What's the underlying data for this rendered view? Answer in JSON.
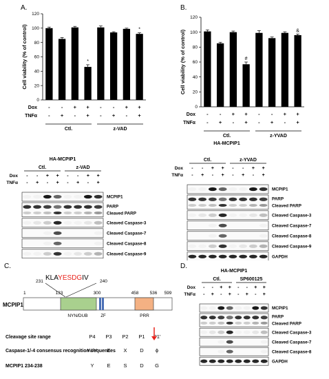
{
  "panel_labels": {
    "a": "A.",
    "b": "B.",
    "c": "C.",
    "d": "D."
  },
  "chart_data": [
    {
      "type": "bar",
      "panel": "A",
      "ylabel": "Cell viability (% of control)",
      "ylim": [
        0,
        120
      ],
      "yticks": [
        0,
        20,
        40,
        60,
        80,
        100,
        120
      ],
      "categories": [
        "1",
        "2",
        "3",
        "4",
        "5",
        "6",
        "7",
        "8"
      ],
      "values": [
        100,
        85,
        101,
        46,
        101,
        94,
        99,
        92
      ],
      "errors": [
        1.5,
        2,
        1.5,
        3,
        2,
        1,
        1,
        1.5
      ],
      "annotations": [
        "",
        "",
        "",
        "*",
        "",
        "",
        "",
        "*"
      ],
      "rows": [
        {
          "label": "Dox",
          "marks": [
            "-",
            "-",
            "+",
            "+",
            "-",
            "-",
            "+",
            "+"
          ]
        },
        {
          "label": "TNFα",
          "marks": [
            "-",
            "+",
            "-",
            "+",
            "-",
            "+",
            "-",
            "+"
          ]
        }
      ],
      "groups": [
        "Ctl.",
        "z-VAD"
      ]
    },
    {
      "type": "bar",
      "panel": "B",
      "ylabel": "Cell viability (% of control)",
      "ylim": [
        0,
        120
      ],
      "yticks": [
        0,
        20,
        40,
        60,
        80,
        100,
        120
      ],
      "categories": [
        "1",
        "2",
        "3",
        "4",
        "5",
        "6",
        "7",
        "8"
      ],
      "values": [
        101,
        85,
        100,
        57,
        99,
        92,
        99,
        96
      ],
      "errors": [
        2,
        1.5,
        1.5,
        3,
        3,
        1.5,
        1.5,
        1.5
      ],
      "annotations": [
        "",
        "",
        "",
        "#",
        "",
        "",
        "",
        "&"
      ],
      "rows": [
        {
          "label": "Dox",
          "marks": [
            "-",
            "-",
            "+",
            "+",
            "-",
            "-",
            "+",
            "+"
          ]
        },
        {
          "label": "TNFα",
          "marks": [
            "-",
            "+",
            "-",
            "+",
            "-",
            "+",
            "-",
            "+"
          ]
        }
      ],
      "groups": [
        "Ctl.",
        "z-YVAD"
      ],
      "construct": "HA-MCPIP1"
    }
  ],
  "blot_a": {
    "title": "HA-MCPIP1",
    "groups": [
      "Ctl.",
      "z-VAD"
    ],
    "rows": [
      {
        "label": "Dox",
        "marks": [
          "-",
          "-",
          "+",
          "+",
          "-",
          "-",
          "+",
          "+"
        ]
      },
      {
        "label": "TNFα",
        "marks": [
          "-",
          "+",
          "-",
          "+",
          "-",
          "+",
          "-",
          "+"
        ]
      }
    ],
    "bands": [
      "MCPIP1",
      "PARP",
      "Cleaved PARP",
      "Cleaved Caspase-3",
      "Cleaved Caspase-7",
      "Cleaved Caspase-8",
      "Cleaved Caspase-9",
      "GAPDH"
    ]
  },
  "blot_b": {
    "groups": [
      "Ctl.",
      "z-YVAD"
    ],
    "rows": [
      {
        "label": "Dox",
        "marks": [
          "-",
          "-",
          "+",
          "+",
          "-",
          "-",
          "+",
          "+"
        ]
      },
      {
        "label": "TNFα",
        "marks": [
          "-",
          "+",
          "-",
          "+",
          "-",
          "+",
          "-",
          "+"
        ]
      }
    ],
    "bands": [
      "MCPIP1",
      "PARP",
      "Cleaved PARP",
      "Cleaved Caspase-3",
      "Cleaved Caspase-7",
      "Cleaved Caspase-8",
      "Cleaved Caspase-9",
      "GAPDH"
    ]
  },
  "blot_d": {
    "title": "HA-MCPIP1",
    "groups": [
      "Ctl.",
      "SP600125"
    ],
    "rows": [
      {
        "label": "Dox",
        "marks": [
          "-",
          "-",
          "+",
          "+",
          "-",
          "-",
          "+",
          "+"
        ]
      },
      {
        "label": "TNFα",
        "marks": [
          "-",
          "+",
          "-",
          "+",
          "-",
          "+",
          "-",
          "+"
        ]
      }
    ],
    "bands": [
      "MCPIP1",
      "PARP",
      "Cleaved PARP",
      "Cleaved Caspase-3",
      "Cleaved Caspase-7",
      "Cleaved Caspase-8",
      "GAPDH"
    ]
  },
  "domain_map": {
    "protein": "MCPIP1",
    "seq_prefix": "KLA",
    "seq_motif": "YESDG",
    "seq_suffix": "IV",
    "seq_start": "231",
    "seq_end": "240",
    "positions": [
      "1",
      "133",
      "300",
      "458",
      "536",
      "599"
    ],
    "domains": [
      "NYN/DUB",
      "ZF",
      "PRR"
    ]
  },
  "cleavage_table": {
    "rows": [
      [
        "Cleavage site range",
        "P4",
        "P3",
        "P2",
        "P1",
        "P1'"
      ],
      [
        "Caspase-1/-4 consensus recognition sequences",
        "W/Y",
        "E",
        "X",
        "D",
        "ϕ"
      ],
      [
        "MCPIP1 234-238",
        "Y",
        "E",
        "S",
        "D",
        "G"
      ]
    ]
  },
  "colors": {
    "bar": "#000000",
    "nyn_domain": "#a9d08e",
    "prr_domain": "#f4b183",
    "motif_red": "#e8221b",
    "arrow_red": "#e8221b"
  }
}
